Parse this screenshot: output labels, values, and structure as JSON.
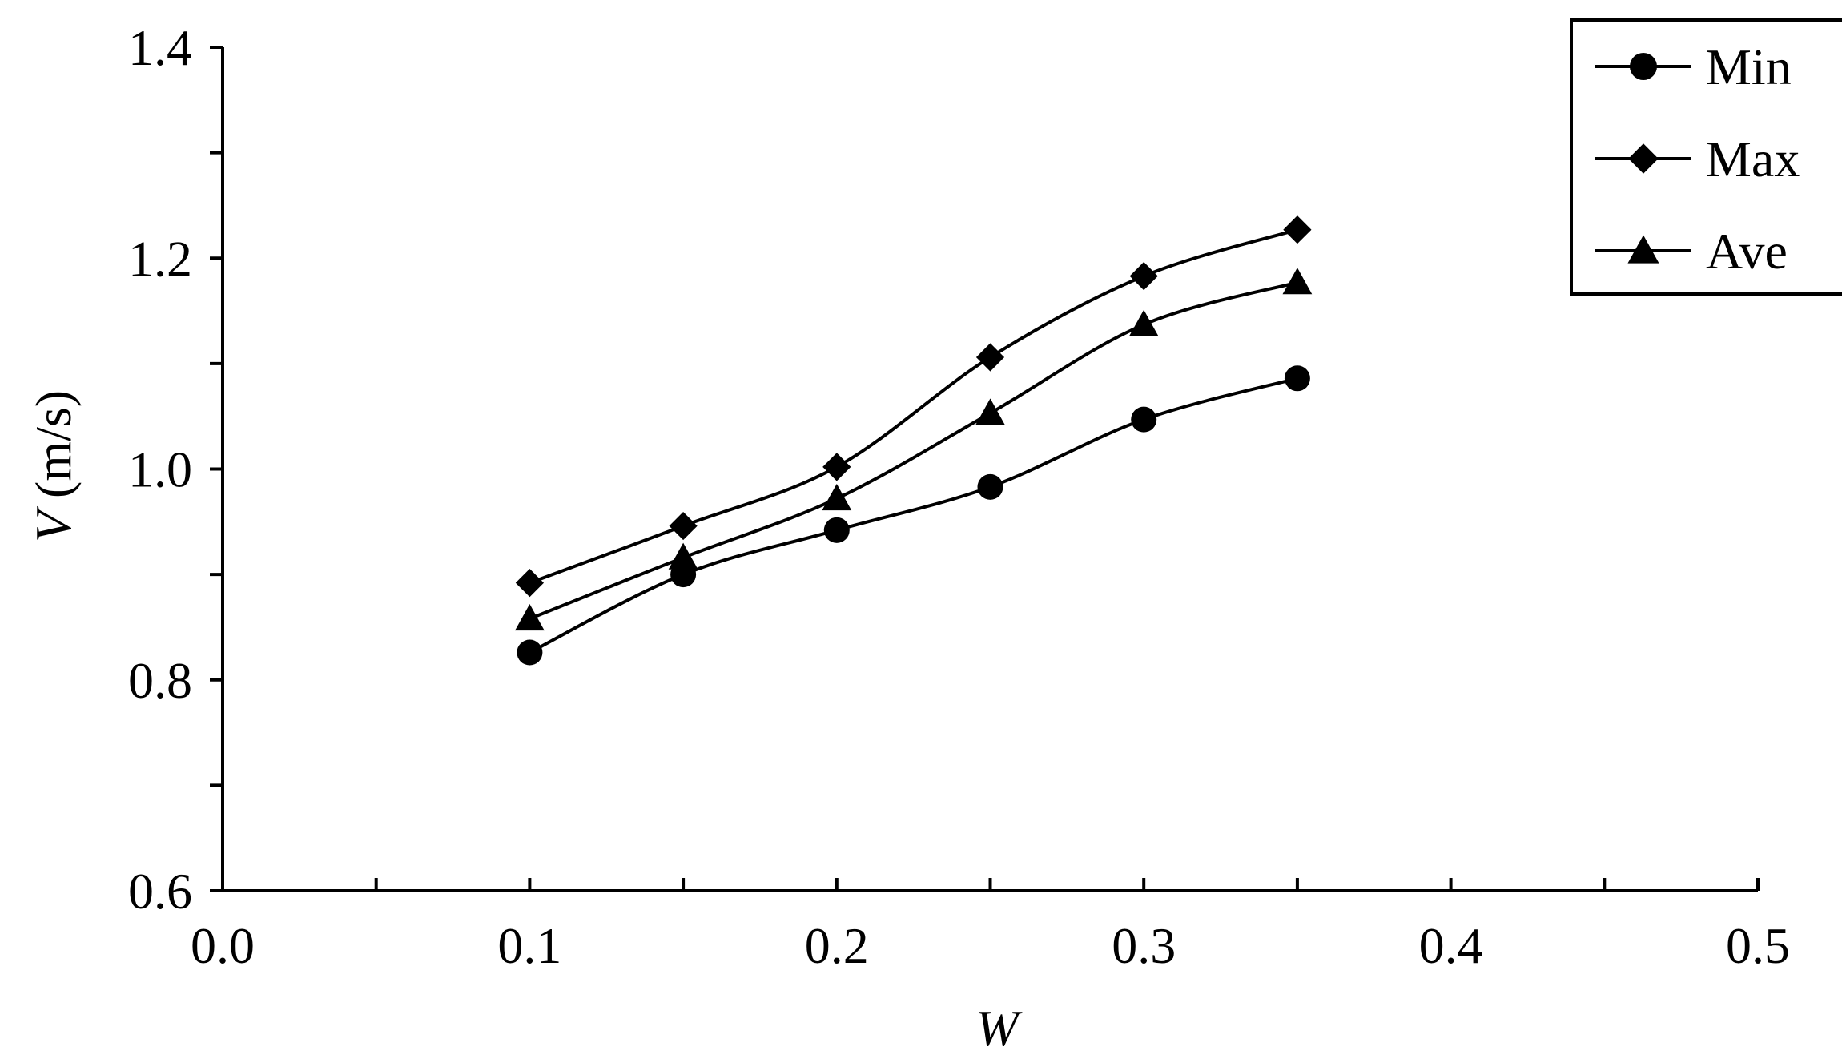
{
  "chart_data": {
    "type": "line",
    "title": "",
    "xlabel": "W",
    "ylabel_var": "V",
    "ylabel_unit": " (m/s)",
    "xlim": [
      0.0,
      0.5
    ],
    "ylim": [
      0.6,
      1.4
    ],
    "x_ticks": [
      "0.0",
      "0.1",
      "0.2",
      "0.3",
      "0.4",
      "0.5"
    ],
    "y_ticks": [
      "0.6",
      "0.8",
      "1.0",
      "1.2",
      "1.4"
    ],
    "grid": false,
    "legend_position": "top-right",
    "x": [
      0.1,
      0.15,
      0.2,
      0.25,
      0.3,
      0.35
    ],
    "series": [
      {
        "name": "Min",
        "marker": "circle",
        "values": [
          0.826,
          0.9,
          0.942,
          0.983,
          1.047,
          1.086
        ]
      },
      {
        "name": "Max",
        "marker": "diamond",
        "values": [
          0.892,
          0.946,
          1.002,
          1.106,
          1.183,
          1.227
        ]
      },
      {
        "name": "Ave",
        "marker": "triangle",
        "values": [
          0.858,
          0.916,
          0.972,
          1.053,
          1.137,
          1.177
        ]
      }
    ]
  }
}
